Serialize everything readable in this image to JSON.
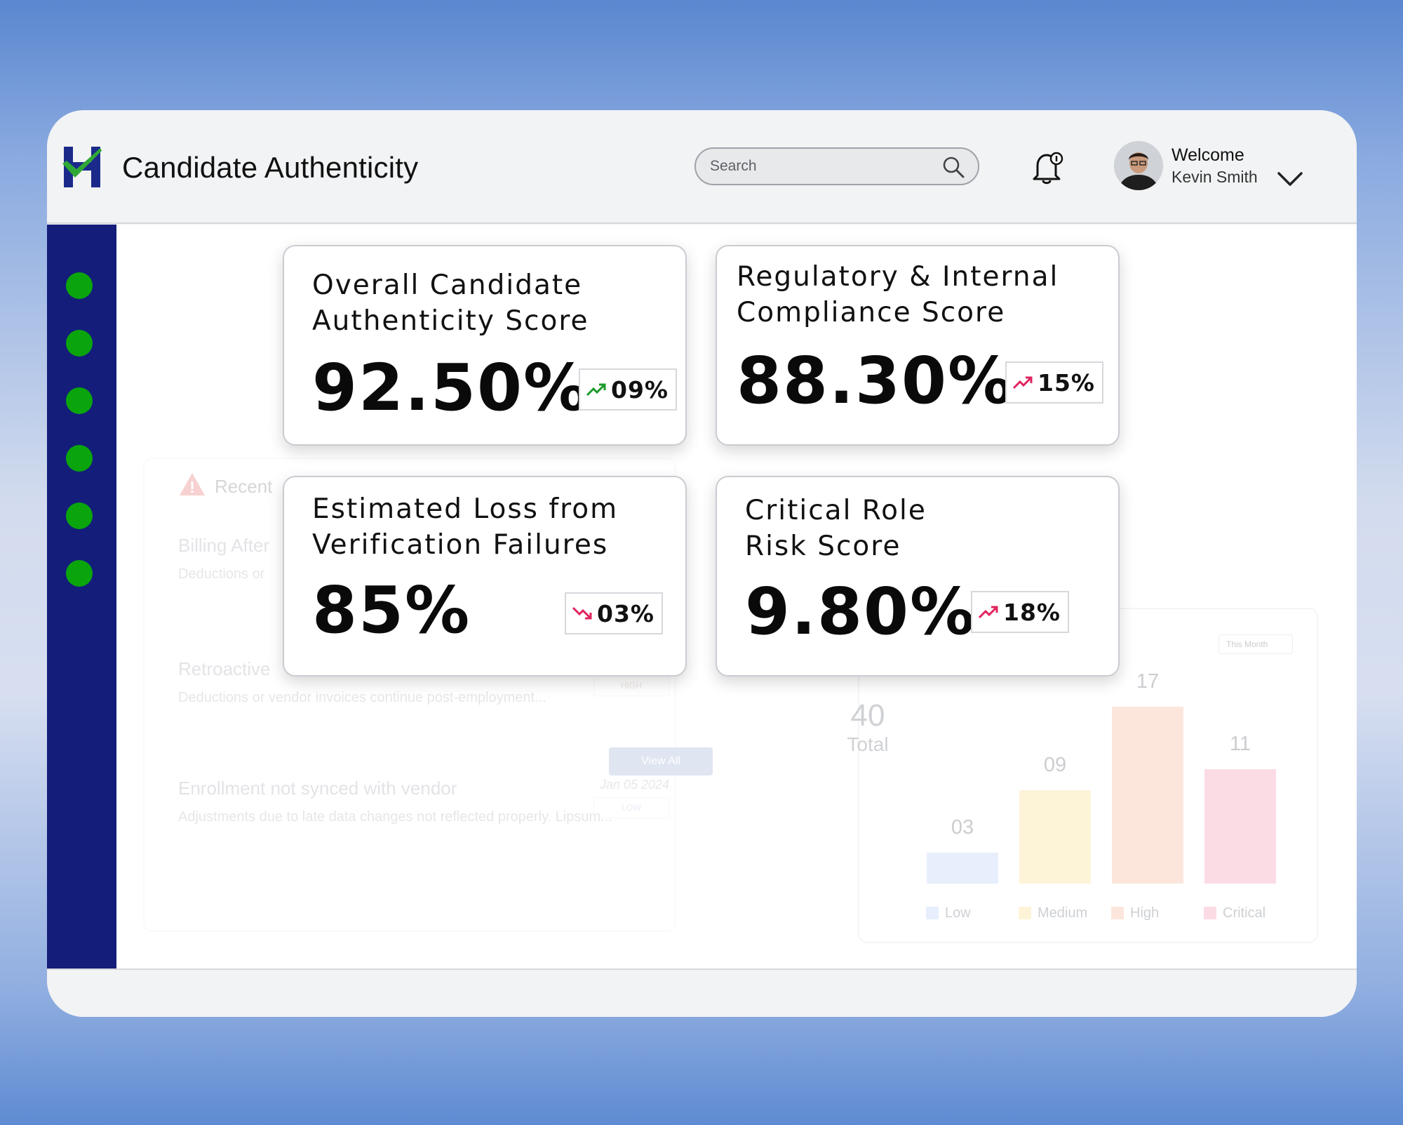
{
  "app": {
    "title": "Candidate Authenticity"
  },
  "search": {
    "placeholder": "Search"
  },
  "user": {
    "welcome": "Welcome",
    "name": "Kevin Smith"
  },
  "sidebar": {
    "items": [
      "nav-1",
      "nav-2",
      "nav-3",
      "nav-4",
      "nav-5",
      "nav-6"
    ]
  },
  "kpis": [
    {
      "title": "Overall Candidate\nAuthenticity Score",
      "value": "92.50%",
      "change": "09%",
      "trend": "up",
      "color": "#1a9a2a"
    },
    {
      "title": "Regulatory & Internal\nCompliance Score",
      "value": "88.30%",
      "change": "15%",
      "trend": "up",
      "color": "#e0245e"
    },
    {
      "title": "Estimated Loss from\nVerification Failures",
      "value": "85%",
      "change": "03%",
      "trend": "down",
      "color": "#e0245e"
    },
    {
      "title": "Critical Role\nRisk Score",
      "value": "9.80%",
      "change": "18%",
      "trend": "up",
      "color": "#e0245e"
    }
  ],
  "alerts": {
    "title": "Recent",
    "items": [
      {
        "title": "Billing After",
        "desc": "Deductions or",
        "date": "",
        "badge": ""
      },
      {
        "title": "Retroactive",
        "desc": "Deductions or vendor invoices continue post-employment...",
        "date": "",
        "badge": "HIGH"
      },
      {
        "title": "Enrollment not synced with vendor",
        "desc": "Adjustments due to late data changes not reflected properly. Lipsum...",
        "date": "Jan 05 2024",
        "badge": "LOW"
      }
    ],
    "view_all": "View All"
  },
  "chart_data": {
    "type": "bar",
    "categories": [
      "Low",
      "Medium",
      "High",
      "Critical"
    ],
    "values": [
      3,
      9,
      17,
      11
    ],
    "value_labels": [
      "03",
      "09",
      "17",
      "11"
    ],
    "colors": [
      "#e7effd",
      "#fdf4d8",
      "#fce6dc",
      "#fbdce4"
    ],
    "total_value": "40",
    "total_label": "Total",
    "filter": "This Month",
    "ylim": [
      0,
      17
    ]
  }
}
